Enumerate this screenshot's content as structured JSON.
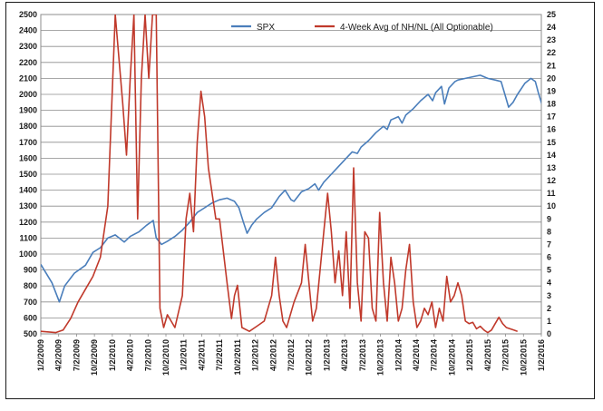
{
  "chart_data": {
    "type": "line",
    "title": "",
    "xlabel": "",
    "ylabel": "",
    "y2label": "",
    "grid": true,
    "legend": "top-center",
    "x_tick_labels": [
      "1/2/2009",
      "4/2/2009",
      "7/2/2009",
      "10/2/2009",
      "1/2/2010",
      "4/2/2010",
      "7/2/2010",
      "10/2/2010",
      "1/2/2011",
      "4/2/2011",
      "7/2/2011",
      "10/2/2011",
      "1/2/2012",
      "4/2/2012",
      "7/2/2012",
      "10/2/2012",
      "1/2/2013",
      "4/2/2013",
      "7/2/2013",
      "10/2/2013",
      "1/2/2014",
      "4/2/2014",
      "7/2/2014",
      "10/2/2014",
      "1/2/2015",
      "4/2/2015",
      "7/2/2015",
      "10/2/2015",
      "1/2/2016"
    ],
    "y_left": {
      "min": 500,
      "max": 2500,
      "step": 100
    },
    "y_right": {
      "min": 0,
      "max": 25,
      "step": 1
    },
    "series": [
      {
        "name": "SPX",
        "axis": "left",
        "color": "#4a7ebb",
        "points": [
          [
            0,
            935
          ],
          [
            1.5,
            820
          ],
          [
            2.5,
            700
          ],
          [
            3.2,
            800
          ],
          [
            4.5,
            880
          ],
          [
            6,
            930
          ],
          [
            7,
            1010
          ],
          [
            8,
            1040
          ],
          [
            9,
            1100
          ],
          [
            10,
            1120
          ],
          [
            11.2,
            1075
          ],
          [
            12,
            1110
          ],
          [
            13.2,
            1140
          ],
          [
            14.2,
            1180
          ],
          [
            15.1,
            1210
          ],
          [
            15.5,
            1100
          ],
          [
            16.2,
            1060
          ],
          [
            17,
            1080
          ],
          [
            18,
            1110
          ],
          [
            19,
            1150
          ],
          [
            20,
            1200
          ],
          [
            21,
            1260
          ],
          [
            22,
            1290
          ],
          [
            23,
            1320
          ],
          [
            24,
            1340
          ],
          [
            25,
            1350
          ],
          [
            26,
            1330
          ],
          [
            26.6,
            1290
          ],
          [
            27.2,
            1200
          ],
          [
            27.7,
            1130
          ],
          [
            28.3,
            1180
          ],
          [
            29,
            1220
          ],
          [
            30,
            1260
          ],
          [
            31,
            1290
          ],
          [
            32,
            1360
          ],
          [
            32.8,
            1400
          ],
          [
            33.6,
            1340
          ],
          [
            34,
            1330
          ],
          [
            35,
            1390
          ],
          [
            36,
            1410
          ],
          [
            36.8,
            1440
          ],
          [
            37.3,
            1400
          ],
          [
            38,
            1450
          ],
          [
            39,
            1500
          ],
          [
            40,
            1550
          ],
          [
            41,
            1600
          ],
          [
            41.8,
            1640
          ],
          [
            42.5,
            1630
          ],
          [
            43,
            1670
          ],
          [
            44,
            1710
          ],
          [
            45,
            1760
          ],
          [
            46,
            1800
          ],
          [
            46.5,
            1780
          ],
          [
            47,
            1840
          ],
          [
            48,
            1860
          ],
          [
            48.5,
            1820
          ],
          [
            49,
            1870
          ],
          [
            50,
            1910
          ],
          [
            51,
            1960
          ],
          [
            52,
            2000
          ],
          [
            52.6,
            1960
          ],
          [
            53,
            2010
          ],
          [
            53.8,
            2050
          ],
          [
            54.2,
            1940
          ],
          [
            54.8,
            2040
          ],
          [
            55.6,
            2080
          ],
          [
            56,
            2090
          ],
          [
            57,
            2100
          ],
          [
            58,
            2110
          ],
          [
            59,
            2120
          ],
          [
            60,
            2100
          ],
          [
            61,
            2090
          ],
          [
            61.8,
            2080
          ],
          [
            62.3,
            2000
          ],
          [
            62.8,
            1920
          ],
          [
            63.4,
            1950
          ],
          [
            64,
            2000
          ],
          [
            65,
            2070
          ],
          [
            65.8,
            2100
          ],
          [
            66.4,
            2080
          ],
          [
            66.8,
            2010
          ],
          [
            67.4,
            1920
          ],
          [
            67.8,
            1880
          ]
        ]
      },
      {
        "name": "4-Week Avg of NH/NL (All Optionable)",
        "axis": "right",
        "color": "#c0392b",
        "points": [
          [
            0,
            0.2
          ],
          [
            2,
            0.1
          ],
          [
            3,
            0.3
          ],
          [
            4,
            1.2
          ],
          [
            5,
            2.5
          ],
          [
            6,
            3.5
          ],
          [
            7,
            4.5
          ],
          [
            8,
            6
          ],
          [
            9,
            10
          ],
          [
            10,
            25
          ],
          [
            11,
            18
          ],
          [
            11.5,
            14
          ],
          [
            12,
            20
          ],
          [
            12.5,
            25
          ],
          [
            13,
            9
          ],
          [
            13.5,
            20
          ],
          [
            14,
            25
          ],
          [
            14.5,
            20
          ],
          [
            15,
            25
          ],
          [
            15.5,
            25
          ],
          [
            16,
            2
          ],
          [
            16.5,
            0.5
          ],
          [
            17,
            1.5
          ],
          [
            18,
            0.5
          ],
          [
            19,
            3
          ],
          [
            19.5,
            9
          ],
          [
            20,
            11
          ],
          [
            20.5,
            8
          ],
          [
            21,
            15
          ],
          [
            21.5,
            19
          ],
          [
            22,
            17
          ],
          [
            22.5,
            13
          ],
          [
            23,
            11
          ],
          [
            23.5,
            9
          ],
          [
            24,
            9
          ],
          [
            25,
            4
          ],
          [
            25.6,
            1.2
          ],
          [
            26,
            3
          ],
          [
            26.4,
            3.8
          ],
          [
            27,
            0.5
          ],
          [
            28,
            0.2
          ],
          [
            29,
            0.6
          ],
          [
            30,
            1
          ],
          [
            31,
            3
          ],
          [
            31.5,
            6
          ],
          [
            32,
            3
          ],
          [
            32.5,
            1
          ],
          [
            33,
            0.5
          ],
          [
            34,
            2.5
          ],
          [
            35,
            4
          ],
          [
            35.5,
            7
          ],
          [
            36,
            4
          ],
          [
            36.5,
            1
          ],
          [
            37,
            2
          ],
          [
            38,
            8
          ],
          [
            38.5,
            11
          ],
          [
            39,
            8
          ],
          [
            39.5,
            4
          ],
          [
            40,
            6.5
          ],
          [
            40.5,
            3
          ],
          [
            41,
            8
          ],
          [
            41.5,
            2
          ],
          [
            42,
            13
          ],
          [
            42.5,
            4
          ],
          [
            43,
            1
          ],
          [
            43.5,
            8
          ],
          [
            44,
            7.5
          ],
          [
            44.5,
            2
          ],
          [
            45,
            1
          ],
          [
            45.5,
            9.5
          ],
          [
            46,
            4
          ],
          [
            46.5,
            1
          ],
          [
            47,
            6
          ],
          [
            47.5,
            4
          ],
          [
            48,
            1
          ],
          [
            48.5,
            2
          ],
          [
            49,
            5
          ],
          [
            49.5,
            7
          ],
          [
            50,
            2.5
          ],
          [
            50.5,
            0.5
          ],
          [
            51,
            1
          ],
          [
            51.5,
            2
          ],
          [
            52,
            1.5
          ],
          [
            52.5,
            2.5
          ],
          [
            53,
            0.5
          ],
          [
            53.5,
            2
          ],
          [
            54,
            1
          ],
          [
            54.5,
            4.5
          ],
          [
            55,
            2.5
          ],
          [
            55.5,
            3
          ],
          [
            56,
            4
          ],
          [
            56.5,
            3
          ],
          [
            57,
            1
          ],
          [
            57.5,
            0.8
          ],
          [
            58,
            0.9
          ],
          [
            58.5,
            0.4
          ],
          [
            59,
            0.6
          ],
          [
            59.5,
            0.3
          ],
          [
            60,
            0.1
          ],
          [
            60.5,
            0.3
          ],
          [
            61,
            0.8
          ],
          [
            61.5,
            1.3
          ],
          [
            62,
            0.8
          ],
          [
            62.5,
            0.5
          ],
          [
            63,
            0.4
          ],
          [
            63.5,
            0.3
          ],
          [
            64,
            0.2
          ]
        ]
      }
    ]
  }
}
